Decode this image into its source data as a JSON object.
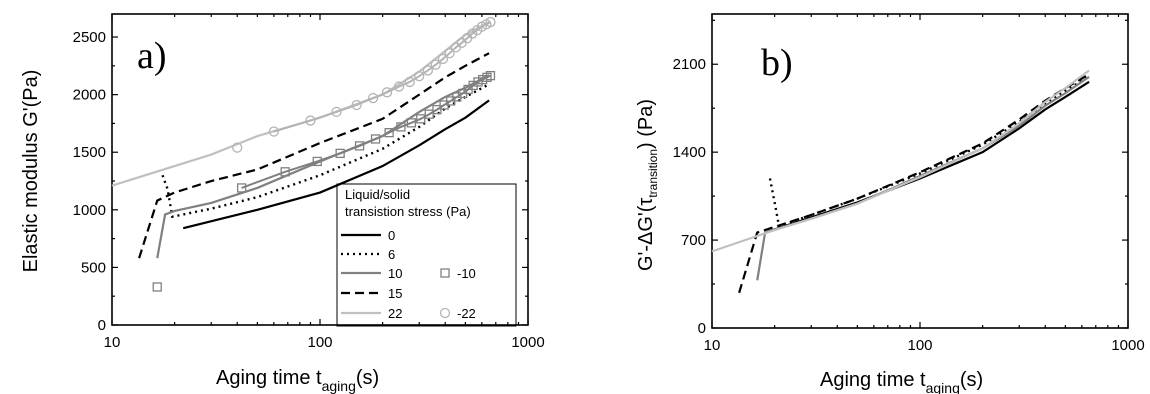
{
  "chart_data": [
    {
      "type": "line",
      "panel_label": "a)",
      "xlabel": "Aging time t",
      "xlabel_sub": "aging",
      "xlabel_suffix": "(s)",
      "ylabel": "Elastic modulus G'(Pa)",
      "xscale": "log",
      "xlim": [
        10,
        1000
      ],
      "ylim": [
        0,
        2700
      ],
      "x_ticks": [
        10,
        100,
        1000
      ],
      "x_tick_labels": [
        "10",
        "100",
        "1000"
      ],
      "y_ticks": [
        0,
        500,
        1000,
        1500,
        2000,
        2500
      ],
      "y_tick_labels": [
        "0",
        "500",
        "1000",
        "1500",
        "2000",
        "2500"
      ],
      "legend": {
        "title_lines": [
          "Liquid/solid",
          "transistion stress (Pa)"
        ],
        "placement": "bottom-right"
      },
      "series": [
        {
          "name": "0",
          "style": "solid",
          "color": "#000000",
          "x": [
            22,
            50,
            100,
            200,
            300,
            400,
            500,
            650
          ],
          "y": [
            840,
            1000,
            1150,
            1380,
            1560,
            1700,
            1800,
            1950
          ]
        },
        {
          "name": "6",
          "style": "dotted",
          "color": "#000000",
          "x": [
            17.5,
            18.5,
            19.5,
            30,
            50,
            100,
            200,
            300,
            400,
            500,
            650
          ],
          "y": [
            1300,
            1180,
            940,
            1010,
            1110,
            1300,
            1530,
            1720,
            1880,
            1980,
            2090
          ]
        },
        {
          "name": "10",
          "style": "solid",
          "color": "#808080",
          "x": [
            16.5,
            18,
            20,
            30,
            50,
            100,
            200,
            300,
            400,
            500,
            650
          ],
          "y": [
            580,
            960,
            990,
            1060,
            1190,
            1420,
            1640,
            1850,
            1980,
            2060,
            2170
          ]
        },
        {
          "name": "15",
          "style": "dashed",
          "color": "#000000",
          "x": [
            13.5,
            16.5,
            20,
            30,
            50,
            100,
            200,
            300,
            400,
            500,
            650
          ],
          "y": [
            580,
            1080,
            1150,
            1250,
            1350,
            1580,
            1790,
            2000,
            2150,
            2250,
            2360
          ]
        },
        {
          "name": "22",
          "style": "solid",
          "color": "#c0c0c0",
          "x": [
            10,
            20,
            30,
            50,
            100,
            200,
            300,
            400,
            500,
            650
          ],
          "y": [
            1210,
            1380,
            1480,
            1640,
            1800,
            2000,
            2200,
            2380,
            2520,
            2630
          ]
        },
        {
          "name": "-10",
          "style": "marker-square",
          "color": "#808080",
          "x": [
            16.5,
            42,
            68,
            97,
            125,
            155,
            185,
            215,
            245,
            275,
            305,
            335,
            365,
            395,
            425,
            455,
            485,
            515,
            545,
            575,
            605,
            635,
            660
          ],
          "y": [
            330,
            1190,
            1330,
            1420,
            1490,
            1555,
            1615,
            1670,
            1720,
            1755,
            1790,
            1830,
            1870,
            1910,
            1945,
            1980,
            2010,
            2045,
            2080,
            2110,
            2130,
            2150,
            2165
          ]
        },
        {
          "name": "-22",
          "style": "marker-circle",
          "color": "#b4b4b4",
          "x": [
            40,
            60,
            90,
            120,
            150,
            180,
            210,
            240,
            270,
            300,
            330,
            360,
            390,
            420,
            450,
            480,
            510,
            540,
            570,
            600,
            630,
            660
          ],
          "y": [
            1540,
            1680,
            1775,
            1850,
            1910,
            1970,
            2020,
            2070,
            2110,
            2160,
            2210,
            2260,
            2310,
            2360,
            2410,
            2450,
            2490,
            2530,
            2560,
            2590,
            2610,
            2630
          ]
        }
      ]
    },
    {
      "type": "line",
      "panel_label": "b)",
      "xlabel": "Aging time t",
      "xlabel_sub": "aging",
      "xlabel_suffix": "(s)",
      "ylabel": "G'-ΔG'(τ",
      "ylabel_sub": "transition",
      "ylabel_suffix": ")  (Pa)",
      "xscale": "log",
      "xlim": [
        10,
        1000
      ],
      "ylim": [
        0,
        2500
      ],
      "x_ticks": [
        10,
        100,
        1000
      ],
      "x_tick_labels": [
        "10",
        "100",
        "1000"
      ],
      "y_ticks": [
        0,
        700,
        1400,
        2100
      ],
      "y_tick_labels": [
        "0",
        "700",
        "1400",
        "2100"
      ],
      "series": [
        {
          "name": "0",
          "style": "solid",
          "color": "#000000",
          "x": [
            18,
            30,
            50,
            100,
            200,
            300,
            400,
            500,
            650
          ],
          "y": [
            760,
            880,
            1000,
            1190,
            1400,
            1590,
            1740,
            1840,
            1960
          ]
        },
        {
          "name": "6",
          "style": "dotted",
          "color": "#000000",
          "x": [
            19,
            20,
            21,
            30,
            50,
            100,
            200,
            300,
            400,
            500,
            650
          ],
          "y": [
            1190,
            1000,
            810,
            900,
            1030,
            1230,
            1460,
            1640,
            1790,
            1890,
            2000
          ]
        },
        {
          "name": "10",
          "style": "solid",
          "color": "#808080",
          "x": [
            16.5,
            18,
            30,
            50,
            100,
            200,
            300,
            400,
            500,
            650
          ],
          "y": [
            380,
            760,
            870,
            990,
            1210,
            1430,
            1610,
            1770,
            1870,
            2000
          ]
        },
        {
          "name": "15",
          "style": "dashed",
          "color": "#000000",
          "x": [
            13.5,
            16.5,
            30,
            50,
            100,
            200,
            300,
            400,
            500,
            650
          ],
          "y": [
            280,
            760,
            900,
            1030,
            1240,
            1470,
            1660,
            1810,
            1910,
            2020
          ]
        },
        {
          "name": "22",
          "style": "solid",
          "color": "#c0c0c0",
          "x": [
            10,
            20,
            30,
            50,
            100,
            200,
            300,
            400,
            500,
            650
          ],
          "y": [
            610,
            780,
            870,
            990,
            1200,
            1430,
            1630,
            1800,
            1910,
            2050
          ]
        }
      ]
    }
  ]
}
